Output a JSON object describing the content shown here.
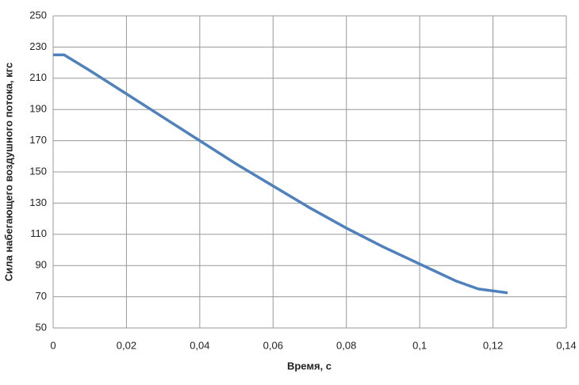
{
  "chart_data": {
    "type": "line",
    "x_label": "Время, с",
    "y_label": "Сила набегающего воздушного потока, кгс",
    "x": [
      0,
      0.003,
      0.01,
      0.02,
      0.03,
      0.04,
      0.05,
      0.06,
      0.07,
      0.08,
      0.09,
      0.1,
      0.11,
      0.116,
      0.124
    ],
    "values": [
      225,
      225,
      215,
      200,
      185,
      170,
      155,
      141,
      127,
      114,
      102,
      91,
      80,
      75,
      72.5
    ],
    "color": "#4f81bd",
    "xlim": [
      0,
      0.14
    ],
    "xticks": [
      0,
      {
        "value": 0.02,
        "label": "0,02"
      },
      {
        "value": 0.04,
        "label": "0,04"
      },
      {
        "value": 0.06,
        "label": "0,06"
      },
      {
        "value": 0.08,
        "label": "0,08"
      },
      {
        "value": 0.1,
        "label": "0,1"
      },
      {
        "value": 0.12,
        "label": "0,12"
      },
      {
        "value": 0.14,
        "label": "0,14"
      }
    ],
    "ylim": [
      50,
      250
    ],
    "yticks": [
      50,
      70,
      90,
      110,
      130,
      150,
      170,
      190,
      210,
      230,
      250
    ],
    "grid": true
  }
}
